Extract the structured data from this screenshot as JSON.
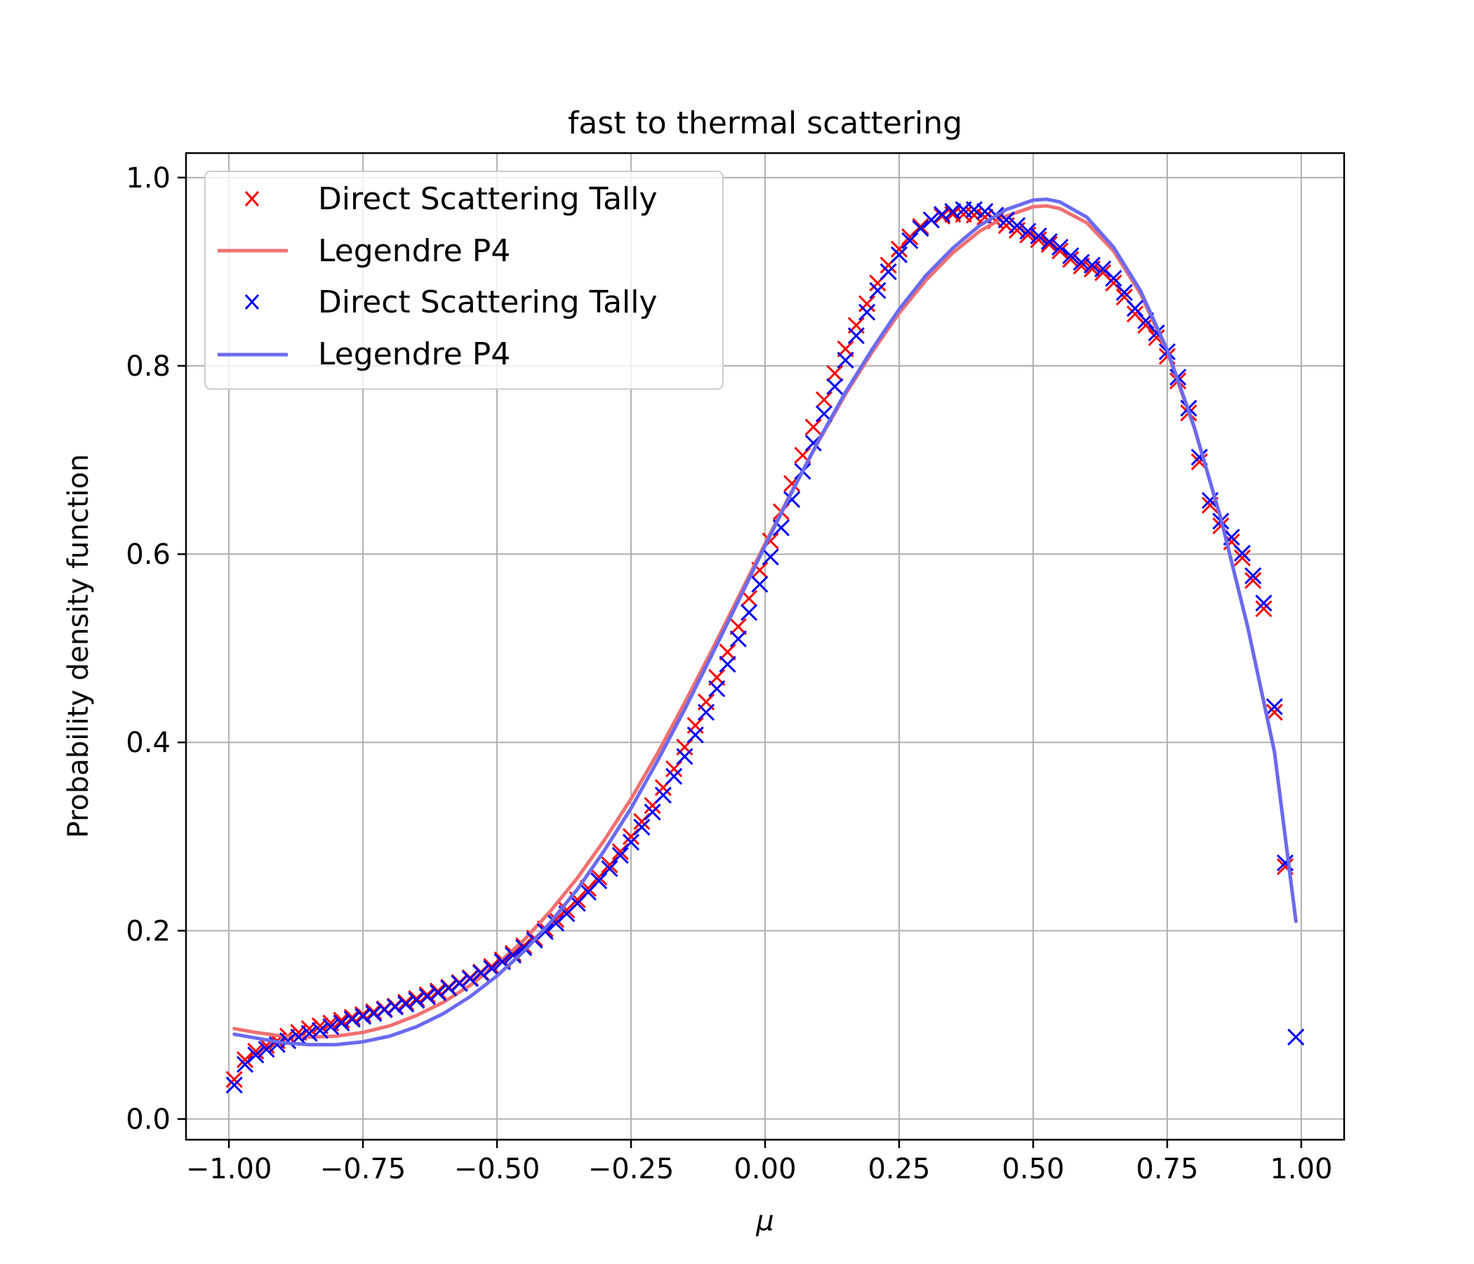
{
  "chart_data": {
    "type": "line",
    "title": "fast to thermal scattering",
    "xlabel": "μ",
    "ylabel": "Probability density function",
    "xlim": [
      -1.08,
      1.08
    ],
    "ylim": [
      -0.022,
      1.026
    ],
    "xticks": [
      -1.0,
      -0.75,
      -0.5,
      -0.25,
      0.0,
      0.25,
      0.5,
      0.75,
      1.0
    ],
    "xtick_labels": [
      "−1.00",
      "−0.75",
      "−0.50",
      "−0.25",
      "0.00",
      "0.25",
      "0.50",
      "0.75",
      "1.00"
    ],
    "yticks": [
      0.0,
      0.2,
      0.4,
      0.6,
      0.8,
      1.0
    ],
    "ytick_labels": [
      "0.0",
      "0.2",
      "0.4",
      "0.6",
      "0.8",
      "1.0"
    ],
    "grid": true,
    "legend_position": "upper-left",
    "legend": [
      "Direct Scattering Tally",
      "Legendre P4",
      "Direct Scattering Tally",
      "Legendre P4"
    ],
    "colors": {
      "red": "#ff0000",
      "blue": "#0000ff",
      "red_line": "#f07070",
      "blue_line": "#6a6af0",
      "grid": "#b0b0b0"
    },
    "series": [
      {
        "name": "Direct Scattering Tally",
        "kind": "scatter",
        "marker": "x",
        "color": "#ff0000",
        "x": [
          -0.99,
          -0.97,
          -0.95,
          -0.93,
          -0.91,
          -0.89,
          -0.87,
          -0.85,
          -0.83,
          -0.81,
          -0.79,
          -0.77,
          -0.75,
          -0.73,
          -0.71,
          -0.69,
          -0.67,
          -0.65,
          -0.63,
          -0.61,
          -0.59,
          -0.57,
          -0.55,
          -0.53,
          -0.51,
          -0.49,
          -0.47,
          -0.45,
          -0.43,
          -0.41,
          -0.39,
          -0.37,
          -0.35,
          -0.33,
          -0.31,
          -0.29,
          -0.27,
          -0.25,
          -0.23,
          -0.21,
          -0.19,
          -0.17,
          -0.15,
          -0.13,
          -0.11,
          -0.09,
          -0.07,
          -0.05,
          -0.03,
          -0.01,
          0.01,
          0.03,
          0.05,
          0.07,
          0.09,
          0.11,
          0.13,
          0.15,
          0.17,
          0.19,
          0.21,
          0.23,
          0.25,
          0.27,
          0.29,
          0.31,
          0.33,
          0.35,
          0.37,
          0.39,
          0.41,
          0.43,
          0.45,
          0.47,
          0.49,
          0.51,
          0.53,
          0.55,
          0.57,
          0.59,
          0.61,
          0.63,
          0.65,
          0.67,
          0.69,
          0.71,
          0.73,
          0.75,
          0.77,
          0.79,
          0.81,
          0.83,
          0.85,
          0.87,
          0.89,
          0.91,
          0.93,
          0.95,
          0.97
        ],
        "y": [
          0.042,
          0.063,
          0.072,
          0.078,
          0.083,
          0.088,
          0.092,
          0.096,
          0.099,
          0.102,
          0.105,
          0.108,
          0.111,
          0.114,
          0.117,
          0.12,
          0.124,
          0.128,
          0.132,
          0.136,
          0.14,
          0.145,
          0.15,
          0.156,
          0.162,
          0.169,
          0.176,
          0.184,
          0.192,
          0.202,
          0.212,
          0.222,
          0.233,
          0.245,
          0.257,
          0.27,
          0.284,
          0.3,
          0.316,
          0.333,
          0.352,
          0.372,
          0.395,
          0.418,
          0.443,
          0.469,
          0.496,
          0.523,
          0.553,
          0.583,
          0.614,
          0.645,
          0.675,
          0.705,
          0.735,
          0.764,
          0.792,
          0.818,
          0.843,
          0.866,
          0.888,
          0.907,
          0.924,
          0.937,
          0.948,
          0.955,
          0.959,
          0.961,
          0.961,
          0.96,
          0.958,
          0.954,
          0.949,
          0.944,
          0.939,
          0.934,
          0.929,
          0.922,
          0.913,
          0.906,
          0.903,
          0.899,
          0.888,
          0.873,
          0.855,
          0.843,
          0.83,
          0.81,
          0.784,
          0.75,
          0.698,
          0.652,
          0.63,
          0.613,
          0.596,
          0.572,
          0.542,
          0.432,
          0.268
        ]
      },
      {
        "name": "Legendre P4",
        "kind": "line",
        "color": "#f07070",
        "x": [
          -0.99,
          -0.95,
          -0.9,
          -0.85,
          -0.8,
          -0.75,
          -0.7,
          -0.65,
          -0.6,
          -0.55,
          -0.5,
          -0.45,
          -0.4,
          -0.35,
          -0.3,
          -0.25,
          -0.2,
          -0.15,
          -0.1,
          -0.05,
          0.0,
          0.05,
          0.1,
          0.15,
          0.2,
          0.25,
          0.3,
          0.35,
          0.4,
          0.45,
          0.5,
          0.525,
          0.55,
          0.6,
          0.65,
          0.7,
          0.75,
          0.8,
          0.85,
          0.9,
          0.95,
          0.99
        ],
        "y": [
          0.096,
          0.092,
          0.088,
          0.087,
          0.088,
          0.092,
          0.099,
          0.11,
          0.124,
          0.142,
          0.164,
          0.19,
          0.221,
          0.256,
          0.296,
          0.34,
          0.389,
          0.442,
          0.497,
          0.554,
          0.611,
          0.667,
          0.72,
          0.77,
          0.815,
          0.856,
          0.891,
          0.92,
          0.943,
          0.959,
          0.969,
          0.97,
          0.967,
          0.952,
          0.922,
          0.877,
          0.815,
          0.735,
          0.638,
          0.523,
          0.39,
          0.21
        ]
      },
      {
        "name": "Direct Scattering Tally",
        "kind": "scatter",
        "marker": "x",
        "color": "#0000ff",
        "x": [
          -0.99,
          -0.97,
          -0.95,
          -0.93,
          -0.91,
          -0.89,
          -0.87,
          -0.85,
          -0.83,
          -0.81,
          -0.79,
          -0.77,
          -0.75,
          -0.73,
          -0.71,
          -0.69,
          -0.67,
          -0.65,
          -0.63,
          -0.61,
          -0.59,
          -0.57,
          -0.55,
          -0.53,
          -0.51,
          -0.49,
          -0.47,
          -0.45,
          -0.43,
          -0.41,
          -0.39,
          -0.37,
          -0.35,
          -0.33,
          -0.31,
          -0.29,
          -0.27,
          -0.25,
          -0.23,
          -0.21,
          -0.19,
          -0.17,
          -0.15,
          -0.13,
          -0.11,
          -0.09,
          -0.07,
          -0.05,
          -0.03,
          -0.01,
          0.01,
          0.03,
          0.05,
          0.07,
          0.09,
          0.11,
          0.13,
          0.15,
          0.17,
          0.19,
          0.21,
          0.23,
          0.25,
          0.27,
          0.29,
          0.31,
          0.33,
          0.35,
          0.37,
          0.39,
          0.41,
          0.43,
          0.45,
          0.47,
          0.49,
          0.51,
          0.53,
          0.55,
          0.57,
          0.59,
          0.61,
          0.63,
          0.65,
          0.67,
          0.69,
          0.71,
          0.73,
          0.75,
          0.77,
          0.79,
          0.81,
          0.83,
          0.85,
          0.87,
          0.89,
          0.91,
          0.93,
          0.95,
          0.97,
          0.99
        ],
        "y": [
          0.036,
          0.058,
          0.068,
          0.074,
          0.079,
          0.083,
          0.087,
          0.091,
          0.094,
          0.098,
          0.102,
          0.106,
          0.109,
          0.112,
          0.116,
          0.119,
          0.122,
          0.126,
          0.13,
          0.134,
          0.139,
          0.144,
          0.149,
          0.155,
          0.16,
          0.167,
          0.174,
          0.182,
          0.19,
          0.199,
          0.208,
          0.218,
          0.229,
          0.241,
          0.253,
          0.266,
          0.28,
          0.294,
          0.31,
          0.326,
          0.344,
          0.364,
          0.385,
          0.408,
          0.432,
          0.457,
          0.483,
          0.51,
          0.538,
          0.568,
          0.597,
          0.628,
          0.658,
          0.688,
          0.718,
          0.749,
          0.778,
          0.806,
          0.832,
          0.857,
          0.88,
          0.9,
          0.918,
          0.933,
          0.946,
          0.955,
          0.961,
          0.964,
          0.966,
          0.966,
          0.964,
          0.96,
          0.955,
          0.949,
          0.943,
          0.938,
          0.932,
          0.926,
          0.917,
          0.91,
          0.907,
          0.903,
          0.893,
          0.878,
          0.861,
          0.848,
          0.835,
          0.815,
          0.788,
          0.755,
          0.703,
          0.657,
          0.635,
          0.618,
          0.601,
          0.577,
          0.548,
          0.438,
          0.272,
          0.087
        ]
      },
      {
        "name": "Legendre P4",
        "kind": "line",
        "color": "#6a6af0",
        "x": [
          -0.99,
          -0.95,
          -0.9,
          -0.85,
          -0.8,
          -0.75,
          -0.7,
          -0.65,
          -0.6,
          -0.55,
          -0.5,
          -0.45,
          -0.4,
          -0.35,
          -0.3,
          -0.25,
          -0.2,
          -0.15,
          -0.1,
          -0.05,
          0.0,
          0.05,
          0.1,
          0.15,
          0.2,
          0.25,
          0.3,
          0.35,
          0.4,
          0.45,
          0.5,
          0.525,
          0.55,
          0.6,
          0.65,
          0.7,
          0.75,
          0.8,
          0.85,
          0.9,
          0.95,
          0.99
        ],
        "y": [
          0.09,
          0.086,
          0.081,
          0.079,
          0.079,
          0.082,
          0.088,
          0.098,
          0.112,
          0.13,
          0.152,
          0.178,
          0.209,
          0.244,
          0.285,
          0.33,
          0.381,
          0.435,
          0.492,
          0.55,
          0.609,
          0.666,
          0.721,
          0.772,
          0.818,
          0.86,
          0.896,
          0.925,
          0.949,
          0.966,
          0.976,
          0.977,
          0.974,
          0.958,
          0.926,
          0.88,
          0.817,
          0.736,
          0.638,
          0.523,
          0.39,
          0.21
        ]
      }
    ]
  }
}
